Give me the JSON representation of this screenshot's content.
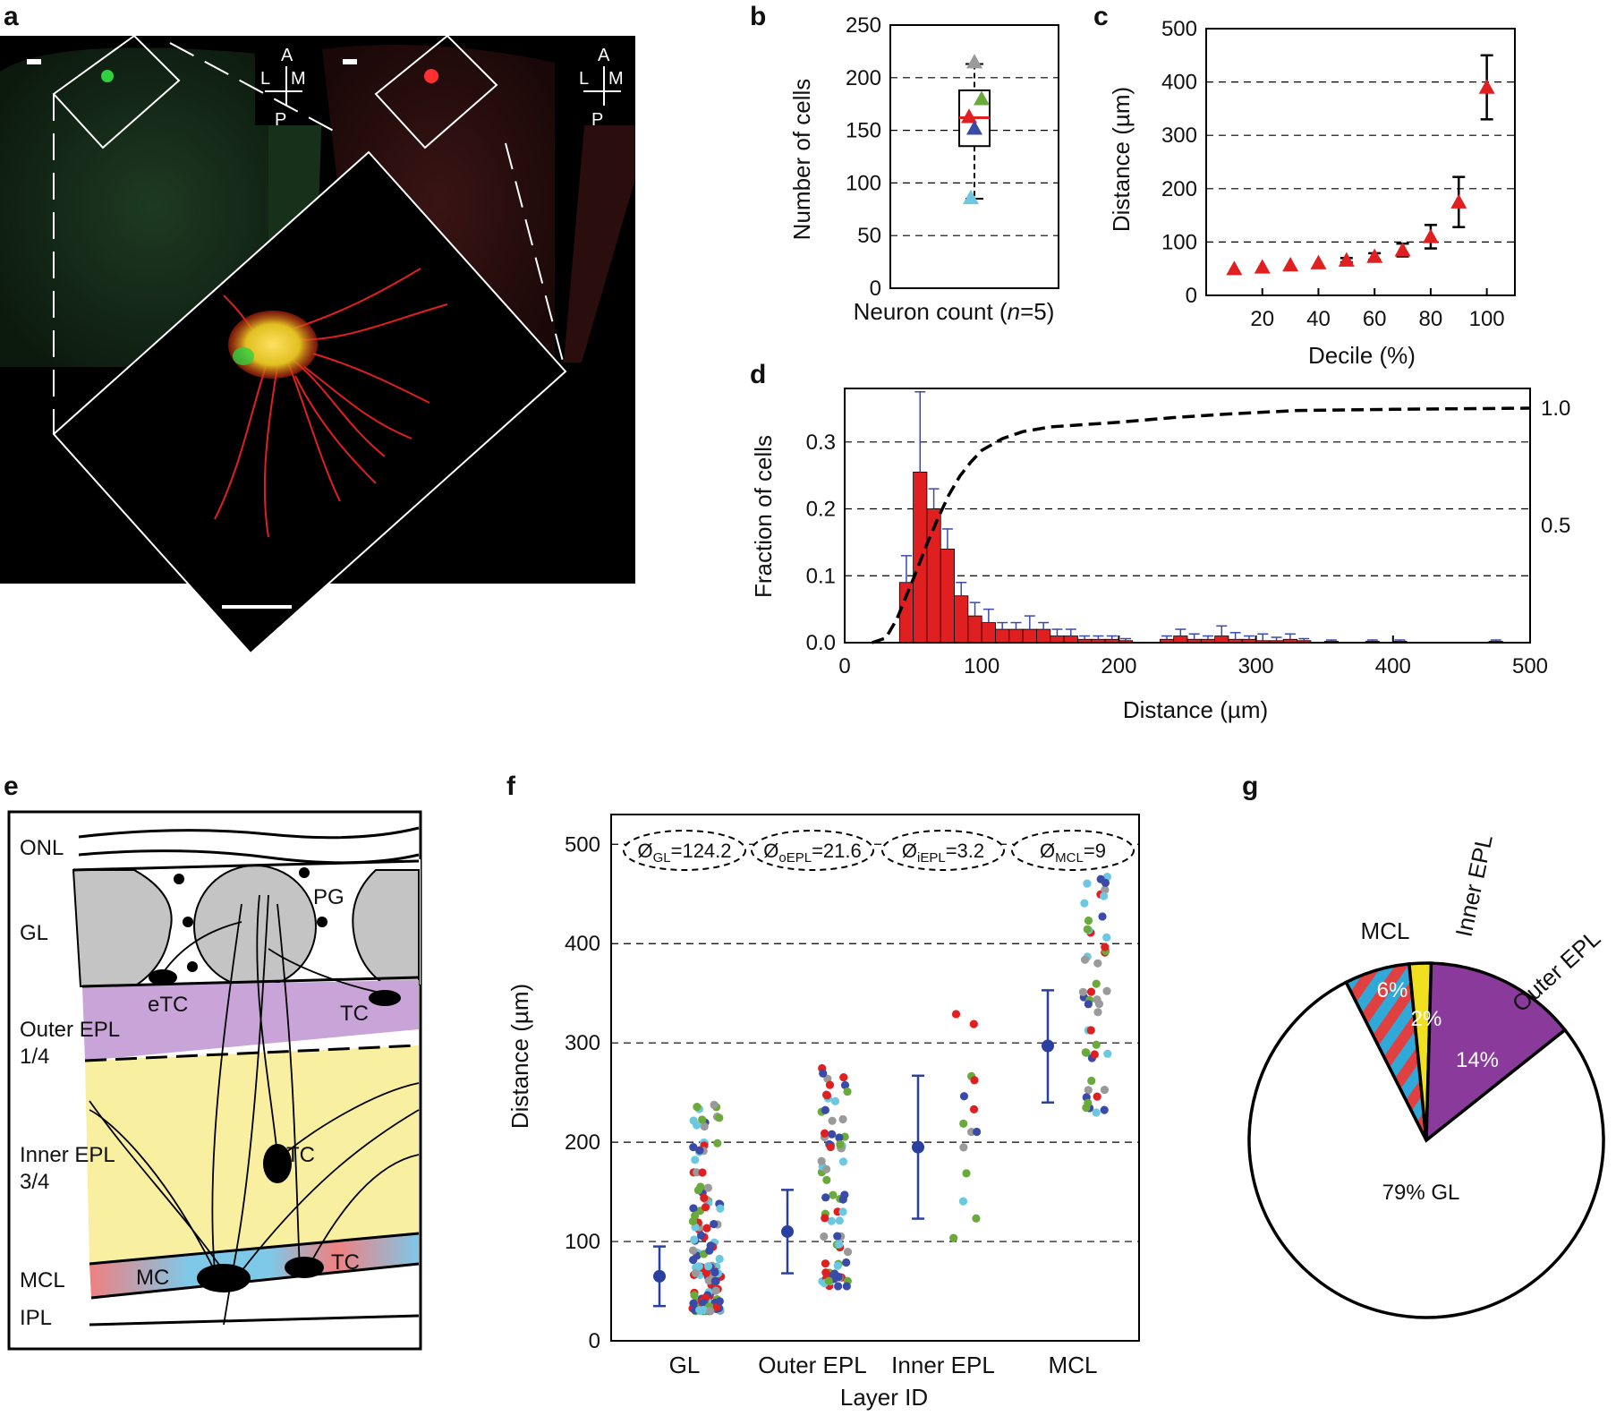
{
  "panels": {
    "a": "a",
    "b": "b",
    "c": "c",
    "d": "d",
    "e": "e",
    "f": "f",
    "g": "g"
  },
  "panel_a": {
    "compass": {
      "A": "A",
      "L": "L",
      "M": "M",
      "P": "P"
    }
  },
  "chart_data": [
    {
      "id": "b",
      "type": "box",
      "ylabel": "Number of cells",
      "xlabel_prefix": "Neuron count (",
      "xlabel_n": "n",
      "xlabel_suffix": "=5)",
      "ylim": [
        0,
        250
      ],
      "yticks": [
        0,
        50,
        100,
        150,
        200,
        250
      ],
      "box": {
        "q1": 135,
        "median": 162,
        "q3": 188,
        "whisker_low": 85,
        "whisker_high": 213
      },
      "points": [
        {
          "value": 215,
          "color": "#9a9a9a"
        },
        {
          "value": 180,
          "color": "#6aaa3a"
        },
        {
          "value": 163,
          "color": "#e02020"
        },
        {
          "value": 152,
          "color": "#3a4aa8"
        },
        {
          "value": 86,
          "color": "#6cc8e0"
        }
      ],
      "grid": "dashed"
    },
    {
      "id": "c",
      "type": "scatter",
      "xlabel": "Decile (%)",
      "ylabel": "Distance (µm)",
      "xlim": [
        0,
        110
      ],
      "ylim": [
        0,
        500
      ],
      "xticks": [
        20,
        40,
        60,
        80,
        100
      ],
      "yticks": [
        0,
        100,
        200,
        300,
        400,
        500
      ],
      "points": [
        {
          "x": 10,
          "y": 50,
          "err": 0
        },
        {
          "x": 20,
          "y": 53,
          "err": 0
        },
        {
          "x": 30,
          "y": 57,
          "err": 0
        },
        {
          "x": 40,
          "y": 61,
          "err": 0
        },
        {
          "x": 50,
          "y": 66,
          "err": 4
        },
        {
          "x": 60,
          "y": 73,
          "err": 6
        },
        {
          "x": 70,
          "y": 85,
          "err": 12
        },
        {
          "x": 80,
          "y": 110,
          "err": 22
        },
        {
          "x": 90,
          "y": 175,
          "err": 47
        },
        {
          "x": 100,
          "y": 390,
          "err": 60
        }
      ],
      "color": "#e02020",
      "grid": "dashed"
    },
    {
      "id": "d",
      "type": "bar",
      "xlabel": "Distance (µm)",
      "ylabel": "Fraction of cells",
      "xlim": [
        0,
        500
      ],
      "ylim": [
        0,
        0.38
      ],
      "xticks": [
        0,
        100,
        200,
        300,
        400,
        500
      ],
      "yticks": [
        0.0,
        0.1,
        0.2,
        0.3
      ],
      "y2ticks": [
        0.5,
        1.0
      ],
      "bin_width": 10,
      "bins": [
        [
          40,
          0.09,
          0.04
        ],
        [
          50,
          0.255,
          0.12
        ],
        [
          60,
          0.2,
          0.03
        ],
        [
          70,
          0.14,
          0.03
        ],
        [
          80,
          0.07,
          0.02
        ],
        [
          90,
          0.04,
          0.02
        ],
        [
          100,
          0.03,
          0.02
        ],
        [
          110,
          0.02,
          0.01
        ],
        [
          120,
          0.02,
          0.01
        ],
        [
          130,
          0.02,
          0.02
        ],
        [
          140,
          0.02,
          0.01
        ],
        [
          150,
          0.01,
          0.01
        ],
        [
          160,
          0.01,
          0.01
        ],
        [
          170,
          0.005,
          0.005
        ],
        [
          180,
          0.005,
          0.005
        ],
        [
          190,
          0.005,
          0.005
        ],
        [
          200,
          0.003,
          0.003
        ],
        [
          230,
          0.005,
          0.005
        ],
        [
          240,
          0.01,
          0.01
        ],
        [
          250,
          0.005,
          0.008
        ],
        [
          260,
          0.005,
          0.005
        ],
        [
          270,
          0.01,
          0.015
        ],
        [
          280,
          0.005,
          0.01
        ],
        [
          290,
          0.005,
          0.005
        ],
        [
          300,
          0.003,
          0.01
        ],
        [
          310,
          0.003,
          0.005
        ],
        [
          320,
          0.005,
          0.008
        ],
        [
          330,
          0.003,
          0.003
        ],
        [
          350,
          0.002,
          0.002
        ],
        [
          380,
          0.002,
          0.002
        ],
        [
          400,
          0.002,
          0.002
        ],
        [
          470,
          0.002,
          0.002
        ]
      ],
      "cdf": [
        [
          20,
          0
        ],
        [
          30,
          0.02
        ],
        [
          38,
          0.1
        ],
        [
          45,
          0.2
        ],
        [
          52,
          0.3
        ],
        [
          60,
          0.42
        ],
        [
          68,
          0.53
        ],
        [
          76,
          0.63
        ],
        [
          84,
          0.71
        ],
        [
          92,
          0.77
        ],
        [
          100,
          0.82
        ],
        [
          115,
          0.87
        ],
        [
          130,
          0.9
        ],
        [
          150,
          0.92
        ],
        [
          175,
          0.93
        ],
        [
          200,
          0.94
        ],
        [
          240,
          0.96
        ],
        [
          280,
          0.975
        ],
        [
          330,
          0.99
        ],
        [
          400,
          0.995
        ],
        [
          500,
          1.0
        ]
      ],
      "bar_color": "#e02020",
      "err_color": "#3a4aa8",
      "grid": "dashed"
    },
    {
      "id": "f",
      "type": "scatter",
      "xlabel": "Layer ID",
      "ylabel": "Distance (µm)",
      "categories": [
        "GL",
        "Outer EPL",
        "Inner EPL",
        "MCL"
      ],
      "ylim": [
        0,
        530
      ],
      "yticks": [
        0,
        100,
        200,
        300,
        400,
        500
      ],
      "means": [
        {
          "mean": 65,
          "low": 35,
          "high": 95
        },
        {
          "mean": 110,
          "low": 68,
          "high": 152
        },
        {
          "mean": 195,
          "low": 123,
          "high": 267
        },
        {
          "mean": 297,
          "low": 240,
          "high": 353
        }
      ],
      "annotations": [
        {
          "sym": "Ø",
          "sub": "GL",
          "val": "=124.2"
        },
        {
          "sym": "Ø",
          "sub": "oEPL",
          "val": "=21.6"
        },
        {
          "sym": "Ø",
          "sub": "iEPL",
          "val": "=3.2"
        },
        {
          "sym": "Ø",
          "sub": "MCL",
          "val": "=9"
        }
      ],
      "point_colors": [
        "#e02020",
        "#3a4aa8",
        "#6cc8e0",
        "#6aaa3a",
        "#9a9a9a"
      ],
      "grid": "dashed"
    },
    {
      "id": "g",
      "type": "pie",
      "slices": [
        {
          "label": "GL",
          "value": 79,
          "text": "79% GL",
          "color": "#ffffff"
        },
        {
          "label": "MCL",
          "value": 6,
          "text": "6%",
          "color": "#e04040"
        },
        {
          "label": "Inner EPL",
          "value": 2,
          "text": "2%",
          "color": "#f0e020"
        },
        {
          "label": "Outer EPL",
          "value": 14,
          "text": "14%",
          "color": "#8a3a9a"
        }
      ]
    }
  ],
  "panel_e": {
    "layers": {
      "onl": "ONL",
      "gl": "GL",
      "outer_epl": "Outer EPL",
      "outer_frac": "1/4",
      "inner_epl": "Inner EPL",
      "inner_frac": "3/4",
      "mcl": "MCL",
      "ipl": "IPL"
    },
    "cells": {
      "pg": "PG",
      "etc": "eTC",
      "tc1": "TC",
      "tc2": "TC",
      "tc3": "TC",
      "mc": "MC"
    }
  }
}
